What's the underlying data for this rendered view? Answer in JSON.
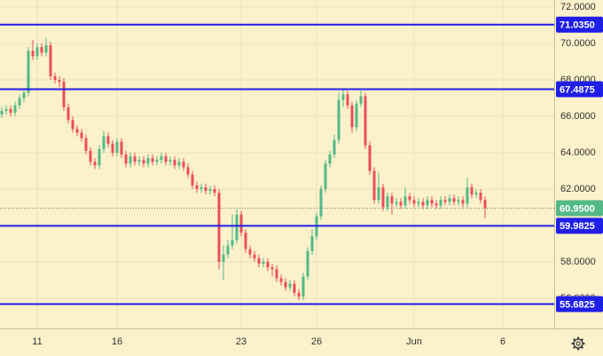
{
  "chart_data": {
    "type": "candlestick",
    "x": [
      0,
      1,
      2,
      3,
      4,
      5,
      6,
      7,
      8,
      9,
      10,
      11,
      12,
      13,
      14,
      15,
      16,
      17,
      18,
      19,
      20,
      21,
      22,
      23,
      24,
      25,
      26,
      27,
      28,
      29,
      30,
      31,
      32,
      33,
      34,
      35,
      36,
      37,
      38,
      39,
      40,
      41,
      42,
      43,
      44,
      45,
      46,
      47,
      48,
      49,
      50,
      51,
      52,
      53,
      54,
      55,
      56,
      57,
      58,
      59,
      60,
      61,
      62,
      63,
      64,
      65,
      66,
      67,
      68,
      69,
      70,
      71,
      72,
      73,
      74,
      75,
      76,
      77,
      78,
      79,
      80,
      81,
      82,
      83,
      84,
      85,
      86,
      87,
      88,
      89,
      90,
      91,
      92,
      93,
      94,
      95,
      96,
      97,
      98,
      99,
      100,
      101,
      102,
      103,
      104,
      105,
      106,
      107,
      108,
      109
    ],
    "open": [
      66.1,
      66.3,
      66.4,
      66.2,
      66.6,
      67.0,
      67.3,
      69.6,
      69.3,
      69.8,
      69.5,
      69.9,
      68.2,
      68.0,
      67.9,
      66.5,
      65.8,
      65.3,
      65.1,
      64.8,
      64.1,
      63.5,
      63.3,
      64.2,
      64.9,
      64.5,
      64.0,
      64.6,
      63.9,
      63.4,
      63.8,
      63.5,
      63.6,
      63.4,
      63.7,
      63.5,
      63.6,
      63.8,
      63.5,
      63.6,
      63.3,
      63.5,
      63.2,
      62.8,
      62.2,
      62.0,
      62.1,
      61.9,
      62.0,
      61.8,
      58.0,
      58.4,
      58.9,
      59.2,
      60.6,
      59.6,
      58.7,
      58.4,
      58.2,
      57.9,
      58.0,
      57.7,
      57.6,
      57.1,
      56.9,
      56.6,
      56.8,
      56.3,
      56.1,
      57.2,
      58.6,
      59.4,
      60.5,
      62.0,
      63.4,
      63.9,
      64.7,
      66.9,
      67.2,
      66.6,
      65.4,
      66.7,
      67.1,
      64.4,
      63.0,
      61.4,
      62.1,
      61.0,
      61.6,
      61.2,
      61.3,
      61.1,
      61.6,
      61.4,
      61.2,
      61.3,
      61.1,
      61.4,
      61.2,
      61.1,
      61.4,
      61.3,
      61.5,
      61.3,
      61.4,
      61.2,
      62.1,
      61.7,
      61.8,
      61.4
    ],
    "high": [
      66.5,
      66.6,
      66.6,
      66.8,
      67.2,
      67.5,
      69.8,
      70.2,
      70.0,
      70.0,
      70.3,
      70.1,
      68.4,
      68.2,
      68.1,
      66.7,
      66.0,
      65.5,
      65.3,
      65.0,
      64.3,
      63.7,
      64.4,
      65.2,
      65.1,
      64.7,
      64.8,
      64.8,
      64.1,
      64.0,
      64.0,
      63.8,
      63.8,
      63.9,
      63.9,
      63.8,
      64.0,
      64.0,
      63.8,
      63.8,
      63.7,
      63.7,
      63.4,
      63.0,
      62.4,
      62.3,
      62.3,
      62.2,
      62.2,
      62.0,
      58.9,
      59.2,
      60.6,
      60.9,
      60.8,
      59.8,
      58.9,
      58.6,
      58.4,
      58.2,
      58.2,
      57.9,
      57.8,
      57.3,
      57.1,
      57.0,
      57.0,
      56.5,
      57.4,
      58.8,
      59.8,
      60.7,
      62.2,
      63.6,
      64.1,
      65.0,
      67.3,
      67.5,
      67.4,
      66.8,
      66.9,
      67.4,
      67.3,
      64.6,
      63.2,
      62.9,
      62.3,
      61.8,
      61.8,
      61.5,
      61.5,
      62.1,
      61.8,
      61.6,
      61.5,
      61.5,
      61.6,
      61.6,
      61.4,
      61.6,
      61.6,
      61.7,
      61.7,
      61.6,
      61.6,
      62.6,
      62.3,
      62.0,
      62.0,
      61.6
    ],
    "low": [
      65.9,
      66.1,
      66.0,
      66.0,
      66.4,
      66.8,
      67.1,
      69.1,
      69.1,
      69.3,
      69.3,
      68.0,
      67.8,
      67.6,
      66.3,
      65.6,
      65.1,
      64.9,
      64.6,
      63.9,
      63.3,
      63.1,
      63.1,
      64.0,
      64.3,
      63.8,
      63.8,
      63.7,
      63.2,
      63.2,
      63.3,
      63.3,
      63.2,
      63.2,
      63.3,
      63.3,
      63.4,
      63.3,
      63.3,
      63.1,
      63.1,
      63.0,
      62.6,
      62.0,
      61.8,
      61.8,
      61.7,
      61.7,
      61.6,
      57.6,
      57.0,
      58.2,
      58.7,
      59.0,
      59.4,
      58.5,
      58.2,
      58.0,
      57.7,
      57.7,
      57.5,
      57.2,
      56.9,
      56.7,
      56.4,
      56.4,
      56.1,
      55.9,
      55.9,
      57.0,
      58.4,
      59.2,
      60.3,
      61.8,
      63.2,
      63.7,
      64.5,
      66.5,
      66.4,
      65.1,
      65.2,
      66.5,
      64.2,
      62.8,
      61.2,
      61.2,
      60.8,
      60.8,
      60.6,
      61.0,
      60.9,
      60.9,
      61.2,
      61.0,
      61.0,
      60.9,
      60.9,
      61.0,
      60.9,
      60.9,
      61.1,
      61.1,
      61.1,
      61.1,
      61.0,
      61.0,
      61.5,
      61.5,
      61.2,
      60.4
    ],
    "close": [
      66.3,
      66.4,
      66.2,
      66.6,
      67.0,
      67.3,
      69.6,
      69.3,
      69.8,
      69.5,
      69.9,
      68.2,
      68.0,
      67.9,
      66.5,
      65.8,
      65.3,
      65.1,
      64.8,
      64.1,
      63.5,
      63.3,
      64.2,
      64.9,
      64.5,
      64.0,
      64.6,
      63.9,
      63.4,
      63.8,
      63.5,
      63.6,
      63.4,
      63.7,
      63.5,
      63.6,
      63.8,
      63.5,
      63.6,
      63.3,
      63.5,
      63.2,
      62.8,
      62.2,
      62.0,
      62.1,
      61.9,
      62.0,
      61.8,
      58.0,
      58.4,
      58.9,
      59.2,
      60.6,
      59.6,
      58.7,
      58.4,
      58.2,
      57.9,
      58.0,
      57.7,
      57.6,
      57.1,
      56.9,
      56.6,
      56.8,
      56.3,
      56.1,
      57.2,
      58.6,
      59.4,
      60.5,
      62.0,
      63.4,
      63.9,
      64.7,
      66.9,
      67.2,
      66.6,
      65.4,
      66.7,
      67.1,
      64.4,
      63.0,
      61.4,
      62.1,
      61.0,
      61.6,
      61.2,
      61.3,
      61.1,
      61.6,
      61.4,
      61.2,
      61.3,
      61.1,
      61.4,
      61.2,
      61.1,
      61.4,
      61.3,
      61.5,
      61.3,
      61.4,
      61.2,
      62.1,
      61.7,
      61.8,
      61.4,
      60.95
    ],
    "up_color": "#53b987",
    "down_color": "#eb4d5c",
    "xlim": [
      -0.4,
      124.6
    ],
    "xticks": [
      {
        "value": 8,
        "label": "11"
      },
      {
        "value": 26,
        "label": "16"
      },
      {
        "value": 54,
        "label": "23"
      },
      {
        "value": 71,
        "label": "26"
      },
      {
        "value": 93,
        "label": "Jun"
      },
      {
        "value": 113,
        "label": "6"
      }
    ],
    "ylim": [
      54.34,
      72.39
    ],
    "yticks": [
      {
        "value": 56,
        "label": "56.0000"
      },
      {
        "value": 58,
        "label": "58.0000"
      },
      {
        "value": 60,
        "label": "60.0000"
      },
      {
        "value": 62,
        "label": "62.0000"
      },
      {
        "value": 64,
        "label": "64.0000"
      },
      {
        "value": 66,
        "label": "66.0000"
      },
      {
        "value": 68,
        "label": "68.0000"
      },
      {
        "value": 70,
        "label": "70.0000"
      },
      {
        "value": 72,
        "label": "72.0000"
      }
    ],
    "grid": true,
    "hlines": [
      {
        "value": 71.035,
        "label": "71.0350",
        "color": "#1f1fe6"
      },
      {
        "value": 67.4875,
        "label": "67.4875",
        "color": "#1f1fe6"
      },
      {
        "value": 59.9825,
        "label": "59.9825",
        "color": "#1f1fe6"
      },
      {
        "value": 55.6825,
        "label": "55.6825",
        "color": "#1f1fe6"
      }
    ],
    "last_price": {
      "value": 60.95,
      "label": "60.9500",
      "color": "#53b987"
    }
  }
}
